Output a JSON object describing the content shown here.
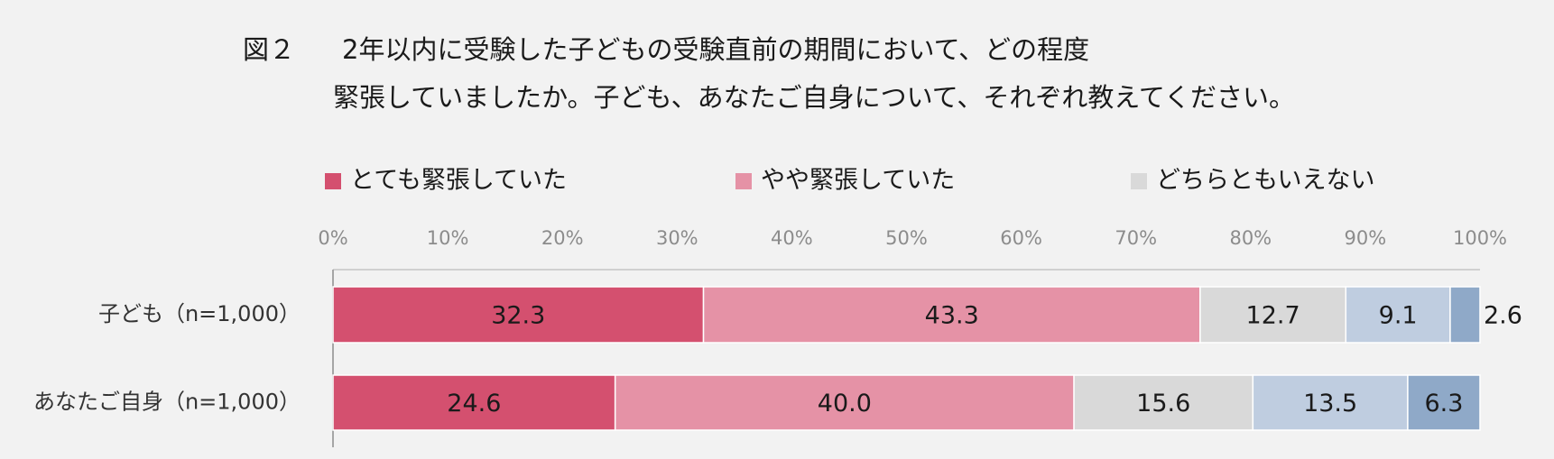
{
  "chart_data": {
    "type": "stacked-bar-horizontal",
    "figure_label": "図２",
    "title_lines": [
      "2年以内に受験した子どもの受験直前の期間において、どの程度",
      "緊張していましたか。子ども、あなたご自身について、それぞれ教えてください。"
    ],
    "categories": [
      "子ども（n=1,000）",
      "あなたご自身（n=1,000）"
    ],
    "series": [
      {
        "name": "とても緊張していた",
        "color": "#d4506f",
        "values": [
          32.3,
          24.6
        ]
      },
      {
        "name": "やや緊張していた",
        "color": "#e592a6",
        "values": [
          43.3,
          40.0
        ],
        "value_labels": [
          "43.3",
          "40.0"
        ]
      },
      {
        "name": "どちらともいえない",
        "color": "#d9d9d9",
        "values": [
          12.7,
          15.6
        ]
      },
      {
        "color": "#bfcde0",
        "values": [
          9.1,
          13.5
        ]
      },
      {
        "color": "#8fa9c8",
        "values": [
          2.6,
          6.3
        ]
      }
    ],
    "label_colors": [
      "#ffffff",
      "#ffffff",
      "#1a1a1a",
      "#1a1a1a",
      "#1a1a1a"
    ],
    "xlim": [
      0,
      100
    ],
    "xticks": [
      {
        "value": 0,
        "label": "0%"
      },
      {
        "value": 10,
        "label": "10%"
      },
      {
        "value": 20,
        "label": "20%"
      },
      {
        "value": 30,
        "label": "30%"
      },
      {
        "value": 40,
        "label": "40%"
      },
      {
        "value": 50,
        "label": "50%"
      },
      {
        "value": 60,
        "label": "60%"
      },
      {
        "value": 70,
        "label": "70%"
      },
      {
        "value": 80,
        "label": "80%"
      },
      {
        "value": 90,
        "label": "90%"
      },
      {
        "value": 100,
        "label": "100%"
      }
    ]
  }
}
